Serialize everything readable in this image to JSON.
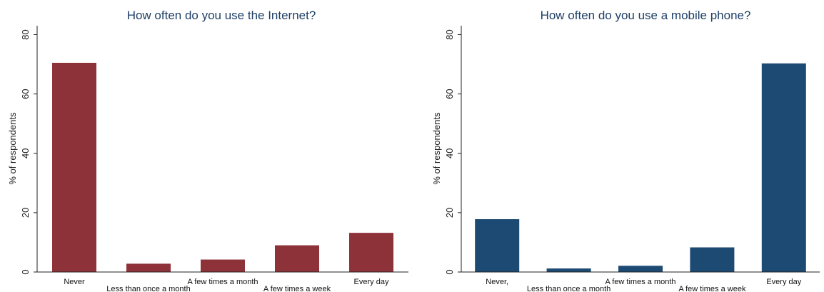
{
  "chart_data": [
    {
      "type": "bar",
      "title": "How often do you use the Internet?",
      "ylabel": "% of respondents",
      "xlabel": "",
      "ylim": [
        0,
        83
      ],
      "yticks": [
        0,
        20,
        40,
        60,
        80
      ],
      "categories": [
        "Never",
        "Less than once a month",
        "A few times a month",
        "A few times a week",
        "Every day"
      ],
      "values": [
        70.5,
        2.8,
        4.2,
        9.0,
        13.2
      ],
      "color": "#8e3239",
      "grid": false
    },
    {
      "type": "bar",
      "title": "How often do you use a mobile phone?",
      "ylabel": "% of respondents",
      "xlabel": "",
      "ylim": [
        0,
        83
      ],
      "yticks": [
        0,
        20,
        40,
        60,
        80
      ],
      "categories": [
        "Never,",
        "Less than once a month",
        "A few times a month",
        "A few times a week",
        "Every day"
      ],
      "values": [
        17.8,
        1.2,
        2.1,
        8.3,
        70.3
      ],
      "color": "#1c4a72",
      "grid": false
    }
  ]
}
